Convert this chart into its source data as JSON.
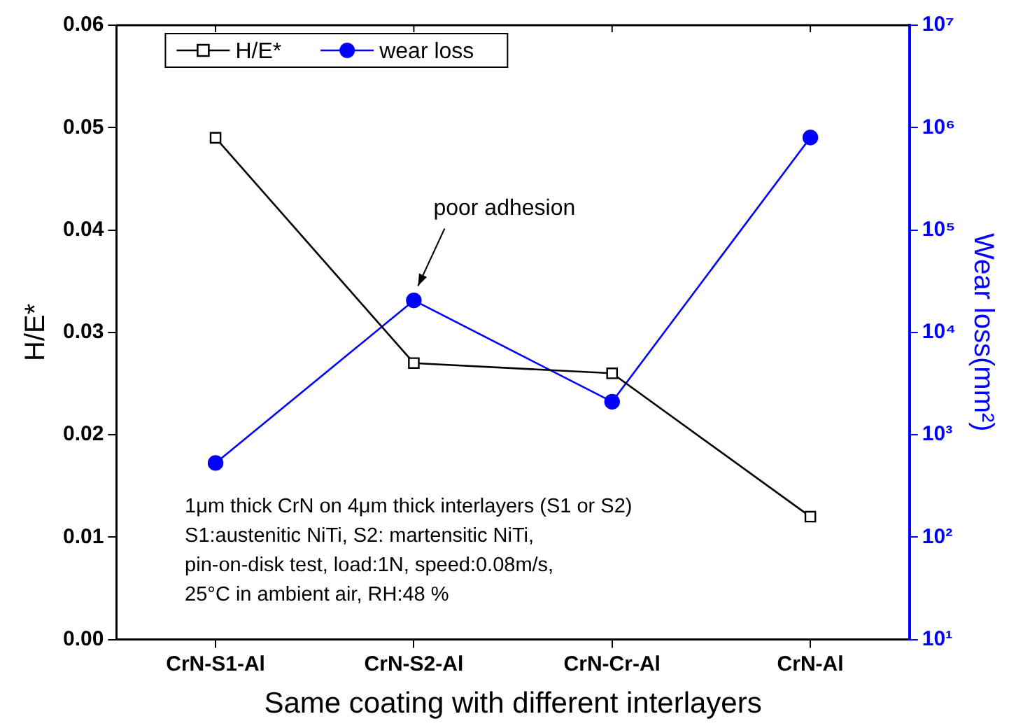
{
  "chart_data": {
    "type": "line",
    "xlabel": "Same coating with different interlayers",
    "ylabel": "H/E*",
    "y2label": "Wear loss(mm²)",
    "categories": [
      "CrN-S1-Al",
      "CrN-S2-Al",
      "CrN-Cr-Al",
      "CrN-Al"
    ],
    "series": [
      {
        "name": "H/E*",
        "color": "#000000",
        "marker": "square",
        "values": [
          0.049,
          0.027,
          0.026,
          0.012
        ]
      },
      {
        "name": "wear loss",
        "color": "#0000ff",
        "marker": "circle",
        "axis": "y2",
        "values": [
          530,
          20500,
          2100,
          800000
        ]
      }
    ],
    "ylim": [
      0,
      0.06
    ],
    "yticks": [
      {
        "value": 0,
        "label": "0.00"
      },
      0.01,
      0.02,
      0.03,
      0.04,
      0.05,
      0.06
    ],
    "y2lim": [
      10,
      10000000
    ],
    "y2ticks": [
      {
        "value": 10,
        "label": "10¹"
      },
      {
        "value": 100,
        "label": "10²"
      },
      {
        "value": 1000,
        "label": "10³"
      },
      {
        "value": 10000,
        "label": "10⁴"
      },
      {
        "value": 100000,
        "label": "10⁵"
      },
      {
        "value": 1000000,
        "label": "10⁶"
      },
      {
        "value": 10000000,
        "label": "10⁷"
      }
    ],
    "log": "y2",
    "grid": false,
    "legend": "top left",
    "line_style": "solid",
    "annotations": [
      "poor adhesion",
      "1μm thick CrN on 4μm thick interlayers (S1 or S2)",
      "S1:austenitic NiTi, S2: martensitic NiTi,",
      "pin-on-disk test, load:1N, speed:0.08m/s,",
      "25°C in ambient air, RH:48 %"
    ]
  }
}
